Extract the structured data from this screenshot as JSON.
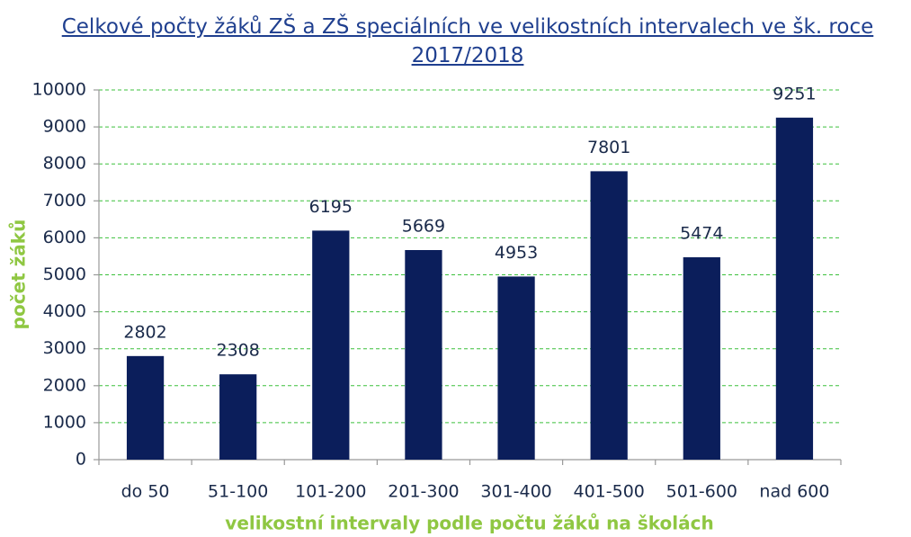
{
  "chart_data": {
    "type": "bar",
    "title": "Celkové počty žáků ZŠ a ZŠ speciálních ve velikostních intervalech ve šk. roce 2017/2018",
    "x_label": "velikostní intervaly podle počtu žáků na školách",
    "y_label": "počet žáků",
    "categories": [
      "do 50",
      "51-100",
      "101-200",
      "201-300",
      "301-400",
      "401-500",
      "501-600",
      "nad 600"
    ],
    "values": [
      2802,
      2308,
      6195,
      5669,
      4953,
      7801,
      5474,
      9251
    ],
    "color": "#0b1e5b",
    "ylim": [
      0,
      10000
    ],
    "yticks": [
      0,
      1000,
      2000,
      3000,
      4000,
      5000,
      6000,
      7000,
      8000,
      9000,
      10000
    ],
    "grid": true
  }
}
